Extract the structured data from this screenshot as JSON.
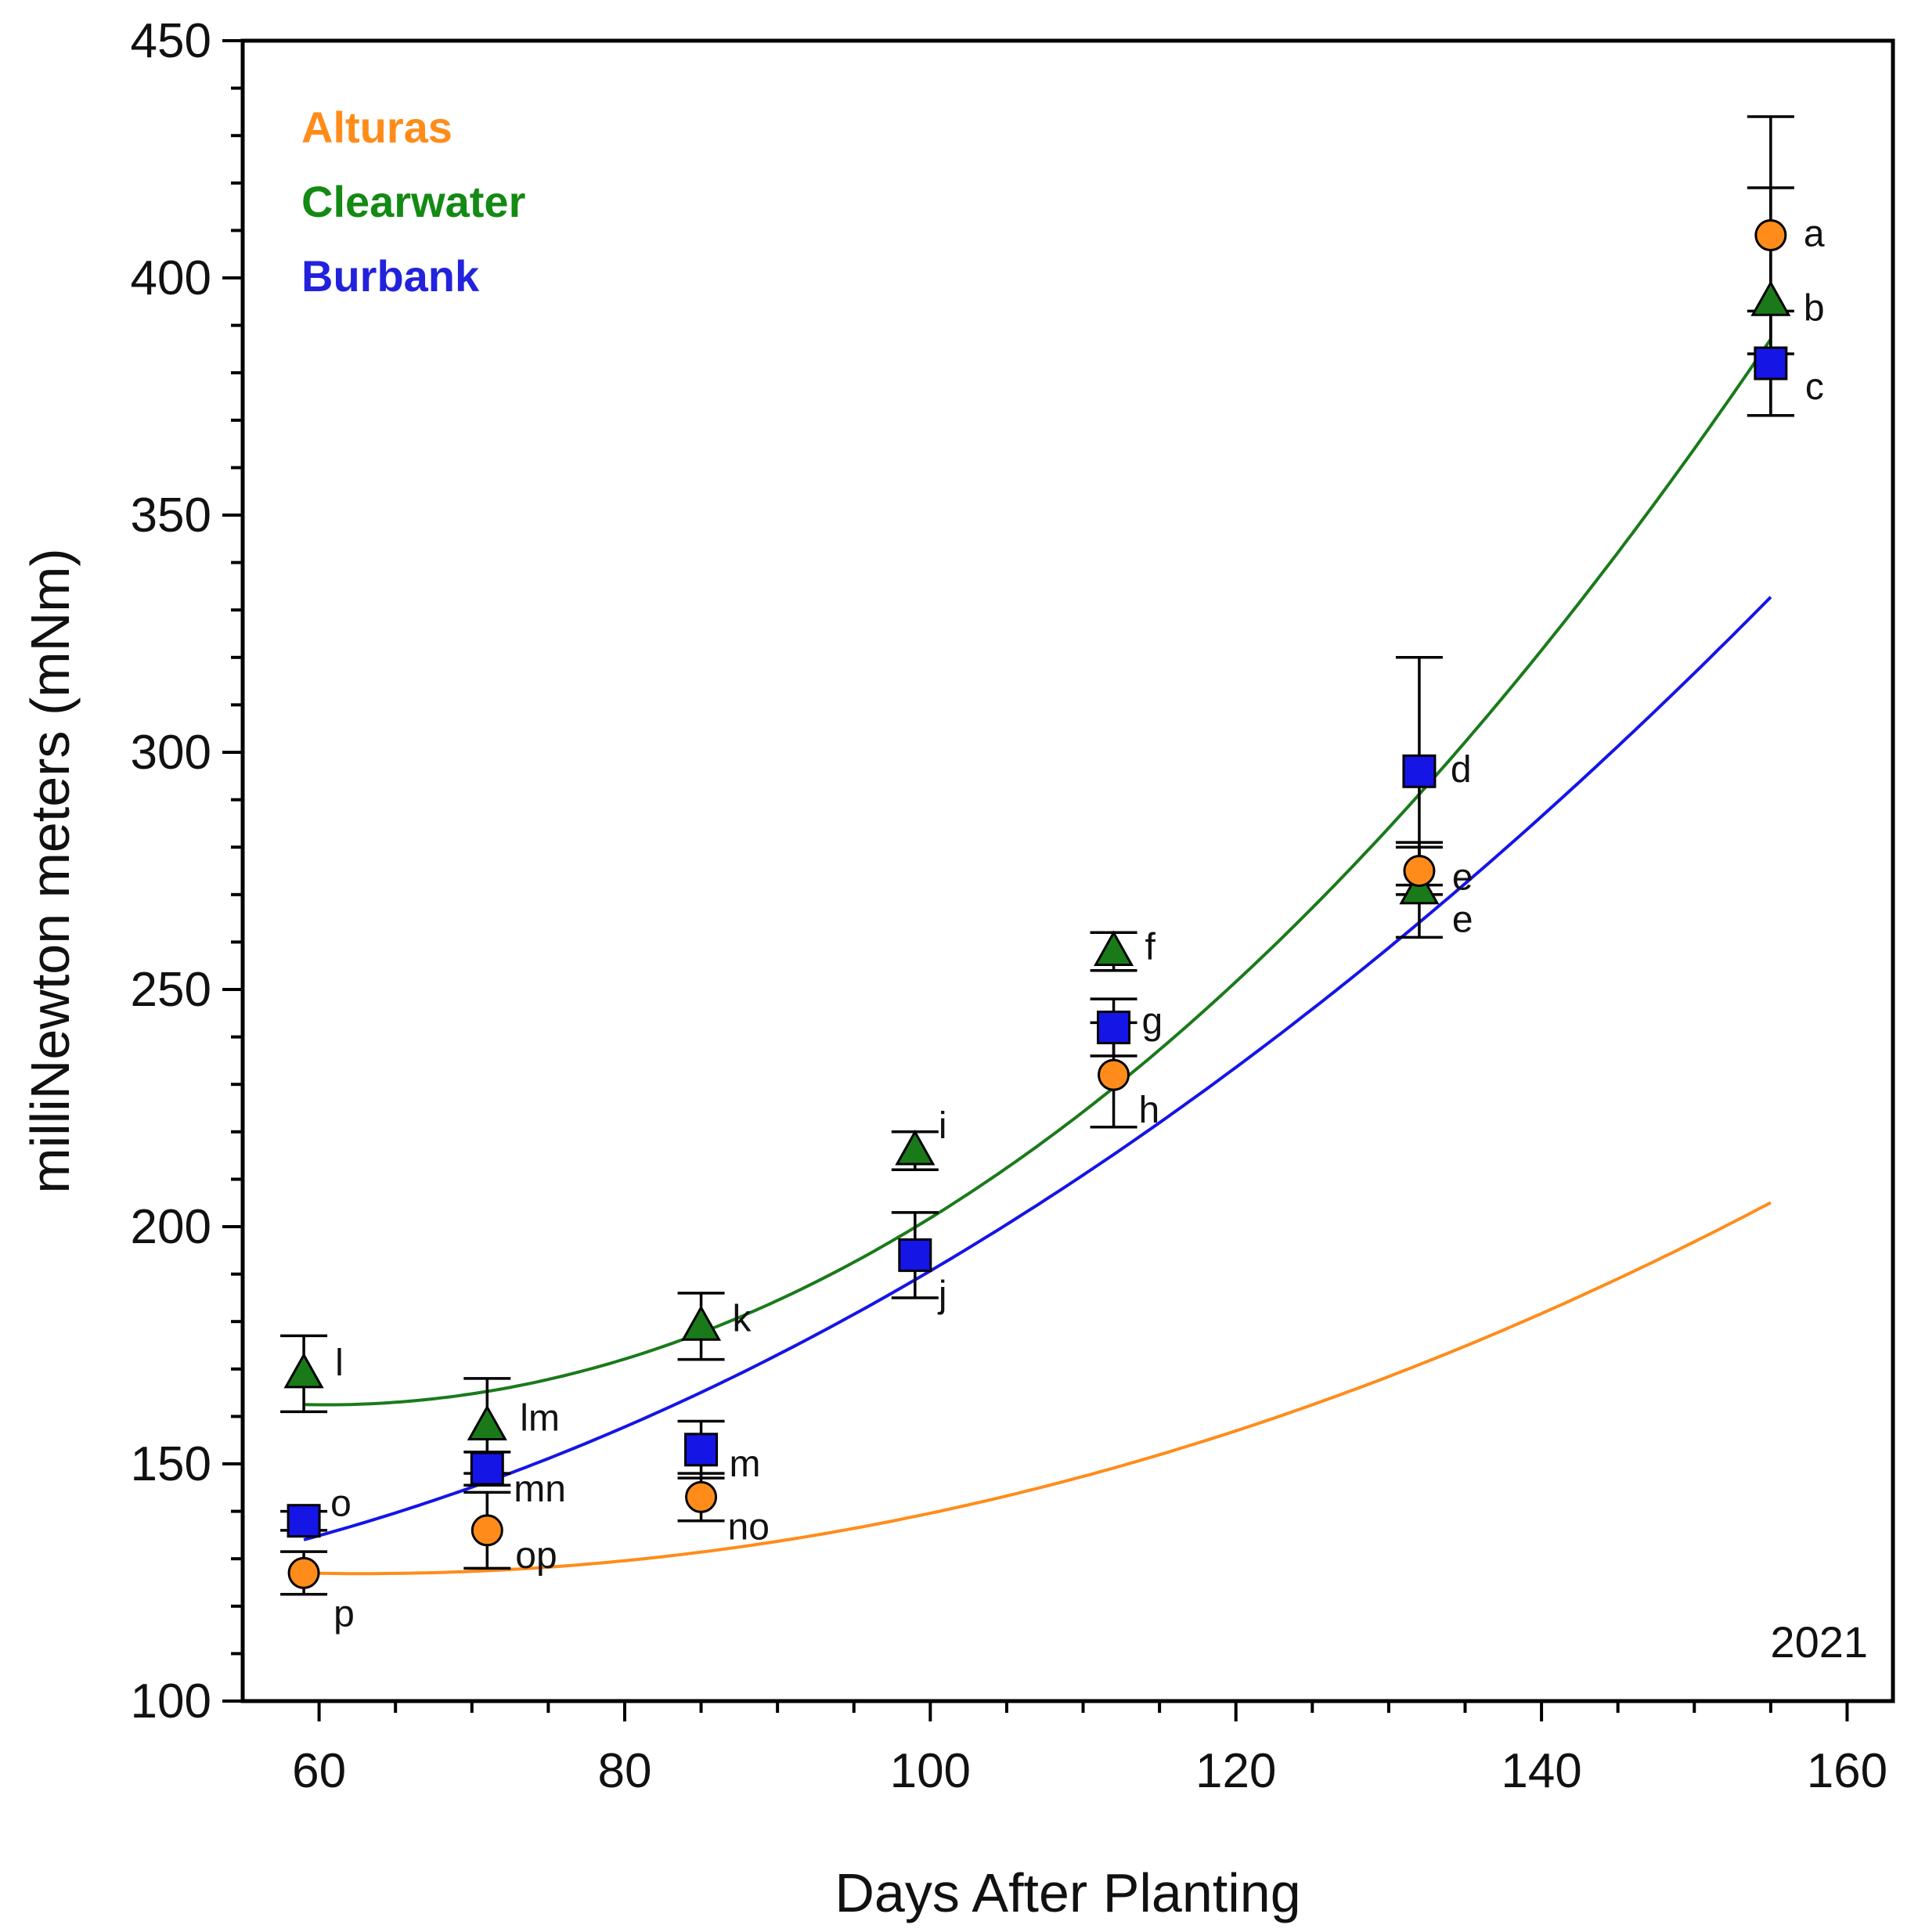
{
  "chart_data": {
    "type": "scatter",
    "title": "",
    "xlabel": "Days After Planting",
    "ylabel": "milliNewton meters (mNm)",
    "annotation": "2021",
    "xlim": [
      55,
      163
    ],
    "ylim": [
      100,
      450
    ],
    "x_ticks": [
      60,
      80,
      100,
      120,
      140,
      160
    ],
    "x_minor_step": 5,
    "y_ticks": [
      100,
      150,
      200,
      250,
      300,
      350,
      400,
      450
    ],
    "y_minor_step": 10,
    "grid": false,
    "legend_position": "top-left",
    "x_tick_labels": [
      "60",
      "80",
      "100",
      "120",
      "140",
      "160"
    ],
    "y_tick_labels": [
      "100",
      "150",
      "200",
      "250",
      "300",
      "350",
      "400",
      "450"
    ],
    "series": [
      {
        "name": "Alturas",
        "color": "#ff8c1a",
        "text_color": "#ff8c1a",
        "marker": "circle",
        "x": [
          59,
          71,
          85,
          112,
          132,
          155
        ],
        "y": [
          127,
          136,
          143,
          232,
          275,
          409
        ],
        "err": [
          4.5,
          8,
          5,
          11,
          5,
          25
        ],
        "labels": [
          "p",
          "op",
          "no",
          "h",
          "e",
          "a"
        ],
        "fit": [
          127,
          0.0092,
          -0.07
        ]
      },
      {
        "name": "Clearwater",
        "color": "#1a7a1a",
        "text_color": "#138a13",
        "marker": "triangle",
        "x": [
          59,
          71,
          85,
          112,
          132,
          155,
          99
        ],
        "y": [
          169,
          158,
          179,
          258,
          271,
          395,
          216
        ],
        "err": [
          8,
          10,
          7,
          4,
          10,
          24,
          4
        ],
        "labels": [
          "l",
          "lm",
          "k",
          "f",
          "e",
          "b",
          "i"
        ],
        "fit": [
          162.5,
          0.0251,
          -0.07
        ]
      },
      {
        "name": "Burbank",
        "color": "#1515e6",
        "text_color": "#2222dd",
        "marker": "square",
        "x": [
          59,
          71,
          85,
          99,
          112,
          132,
          155
        ],
        "y": [
          138,
          149,
          153,
          194,
          242,
          296,
          382
        ],
        "err": [
          2,
          3.5,
          6,
          9,
          6,
          24,
          11
        ],
        "labels": [
          "o",
          "mn",
          "m",
          "j",
          "g",
          "d",
          "c"
        ],
        "fit": [
          134,
          0.0125,
          0.87
        ]
      }
    ]
  }
}
